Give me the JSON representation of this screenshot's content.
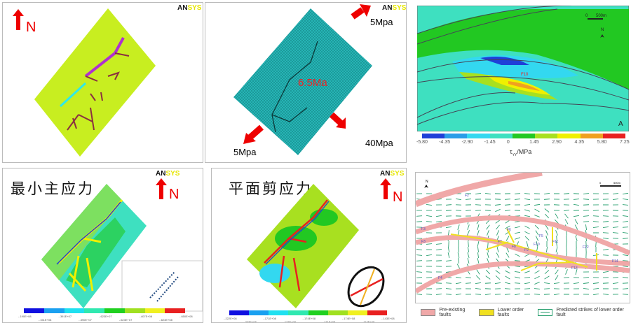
{
  "brand": {
    "logo_a": "AN",
    "logo_b": "SYS"
  },
  "north_label": "N",
  "panel_model": {},
  "panel_mesh": {
    "age_label": "6.5Ma",
    "load_top": "5Mpa",
    "load_bottom_left": "5Mpa",
    "load_bottom_right": "40Mpa",
    "mesh_color": "#26b5b5"
  },
  "panel_shear_map": {
    "scale_zero": "0",
    "scale_length": "500m",
    "north": "N",
    "fault_label": "F10",
    "panel_letter": "A",
    "axis_label": "τ",
    "axis_sub": "YY",
    "axis_unit": "/MPa",
    "ticks": [
      "-5.80",
      "-4.35",
      "-2.90",
      "-1.45",
      "0",
      "1.45",
      "2.90",
      "4.35",
      "5.80",
      "7.25"
    ],
    "colors": [
      "#1f3fd8",
      "#2a9de8",
      "#33d8f0",
      "#3ee0c0",
      "#22c822",
      "#a8e020",
      "#f0f000",
      "#f0a020",
      "#e82020"
    ]
  },
  "panel_min_stress": {
    "title": "最小主应力",
    "ticks": [
      "-.190E+08",
      "-.151E+08",
      "-.391E+07",
      "-.390E+07",
      "-.623E+07",
      "-.623E+07",
      "-.407E+08",
      "-.623E+08",
      "-.650E+08"
    ]
  },
  "panel_plane_shear": {
    "title": "平面剪应力",
    "ticks": [
      "-.222E+08",
      "-.203E+08",
      "-.171E+08",
      "-.177E+08",
      "-.174E+08",
      "-.171E+08",
      "-.174E+08",
      "-.112E+08",
      "-.143E+08"
    ]
  },
  "panel_fault_prediction": {
    "scale_zero": "0",
    "scale_length": "500m",
    "north": "N",
    "faults": [
      "F2",
      "F3",
      "F3",
      "F4",
      "F6",
      "F7",
      "F8",
      "F9",
      "F10",
      "F11",
      "F12",
      "F13",
      "F14",
      "F5"
    ],
    "legend": [
      {
        "label": "Pre-existing faults",
        "color": "#f0a8a8"
      },
      {
        "label": "Lower order faults",
        "color": "#f0e020"
      },
      {
        "label": "Predicted strikes of lower order fault",
        "color": "#2aa070"
      }
    ]
  },
  "rainbow": [
    "#1010e0",
    "#1aa0f0",
    "#20e0f0",
    "#30e8b0",
    "#20d020",
    "#a0e020",
    "#f0f020",
    "#e82020"
  ]
}
